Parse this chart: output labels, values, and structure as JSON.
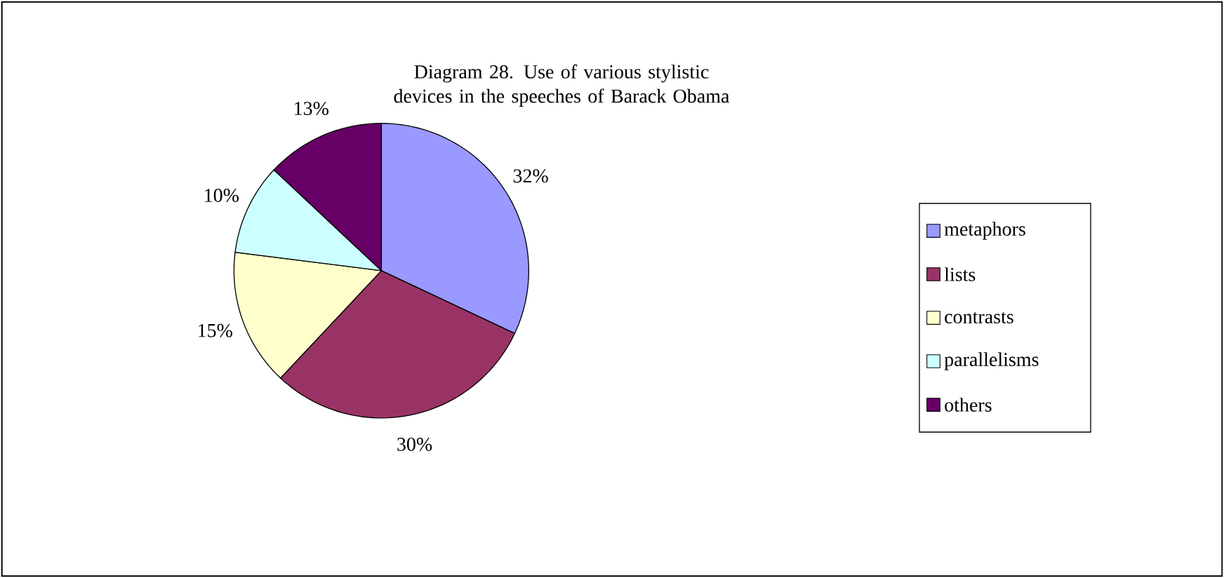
{
  "chart_data": {
    "type": "pie",
    "title": "Diagram 28. Use of various stylistic devices in the speeches of Barack Obama",
    "categories": [
      "metaphors",
      "lists",
      "contrasts",
      "parallelisms",
      "others"
    ],
    "values": [
      32,
      30,
      15,
      10,
      13
    ],
    "value_labels": [
      "32%",
      "30%",
      "15%",
      "10%",
      "13%"
    ],
    "colors": [
      "#9999ff",
      "#993366",
      "#ffffcc",
      "#ccffff",
      "#660066"
    ],
    "legend": "right"
  }
}
